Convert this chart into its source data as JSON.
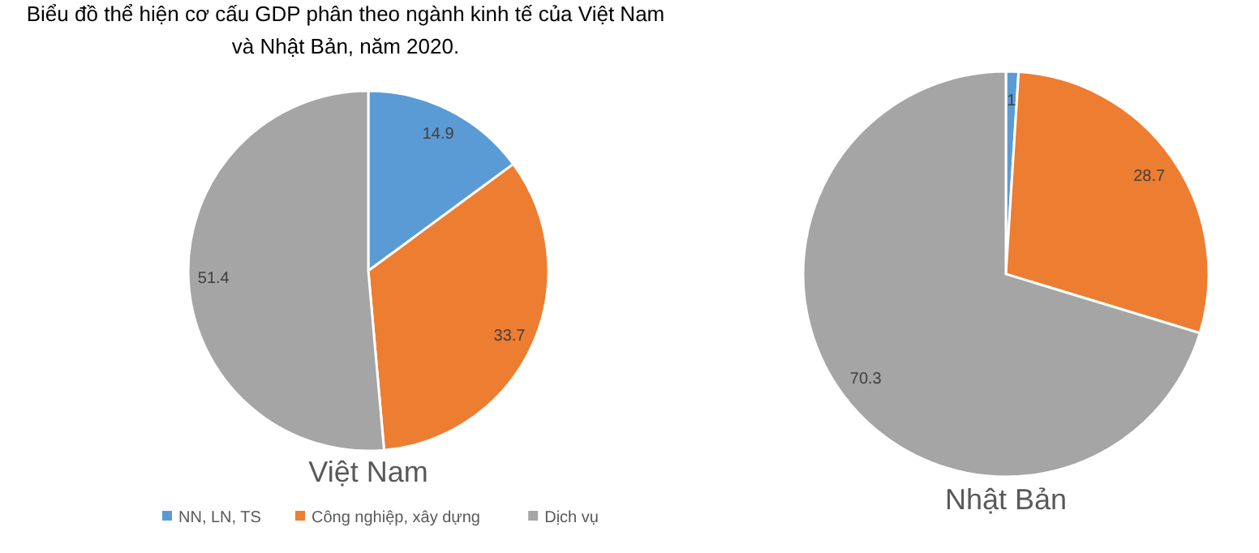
{
  "chart_data": [
    {
      "type": "pie",
      "title": "Biểu đồ thể hiện cơ cấu GDP phân theo ngành kinh tế của Việt Nam\nvà Nhật Bản, năm 2020.",
      "xlabel": "Việt Nam",
      "categories": [
        "NN, LN, TS",
        "Công nghiệp, xây dựng",
        "Dịch vụ"
      ],
      "values": [
        14.9,
        33.7,
        51.4
      ],
      "colors": [
        "#5b9bd5",
        "#ed7d31",
        "#a5a5a5"
      ],
      "data_labels": true,
      "legend": "bottom"
    },
    {
      "type": "pie",
      "xlabel": "Nhật Bản",
      "categories": [
        null,
        null,
        null
      ],
      "values": [
        1,
        28.7,
        70.3
      ],
      "colors": [
        "#5b9bd5",
        "#ed7d31",
        "#a5a5a5"
      ],
      "data_labels": true,
      "legend": false
    }
  ]
}
